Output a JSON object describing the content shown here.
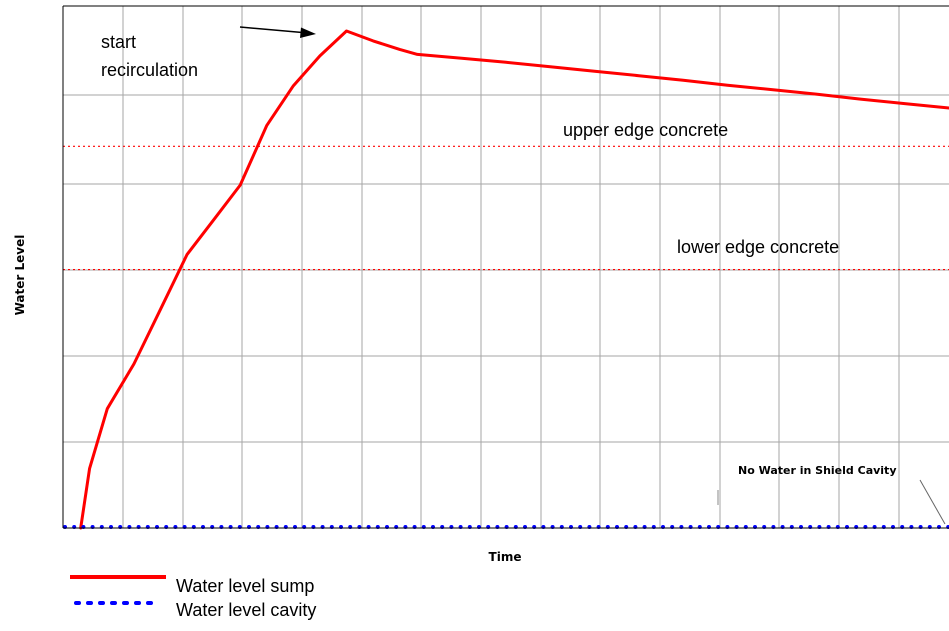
{
  "chart_data": {
    "type": "line",
    "title": "",
    "xlabel": "Time",
    "ylabel": "Water Level",
    "xlim": [
      0,
      100
    ],
    "ylim": [
      0,
      100
    ],
    "grid": true,
    "legend_placement": "bottom-left",
    "series": [
      {
        "name": "Water level sump",
        "color": "#ff0000",
        "style": "solid",
        "x": [
          2.0,
          3.0,
          5.0,
          8.0,
          11.0,
          14.0,
          17.0,
          20.0,
          23.0,
          26.0,
          29.0,
          32.0,
          35.0,
          38.0,
          40.0,
          45.0,
          50.0,
          55.0,
          60.0,
          65.0,
          70.0,
          75.0,
          80.0,
          85.0,
          90.0,
          95.0,
          100.0
        ],
        "y": [
          0.0,
          12.0,
          24.0,
          33.0,
          44.0,
          55.0,
          62.0,
          69.0,
          81.0,
          89.0,
          95.0,
          100.0,
          98.0,
          96.3,
          95.3,
          94.5,
          93.7,
          92.8,
          91.9,
          91.0,
          90.1,
          89.1,
          88.2,
          87.3,
          86.3,
          85.4,
          84.5
        ]
      },
      {
        "name": "Water level cavity",
        "color": "#0000ff",
        "style": "dotted",
        "x": [
          0,
          100
        ],
        "y": [
          0,
          0
        ]
      }
    ],
    "reference_lines": [
      {
        "label": "upper edge concrete",
        "y": 76.8,
        "color": "#ff0000",
        "style": "dotted"
      },
      {
        "label": "lower edge concrete",
        "y": 52.0,
        "color": "#ff0000",
        "style": "dotted"
      }
    ],
    "annotations": {
      "start": "start",
      "recirculation": "recirculation",
      "no_water": "No Water in Shield Cavity"
    }
  }
}
